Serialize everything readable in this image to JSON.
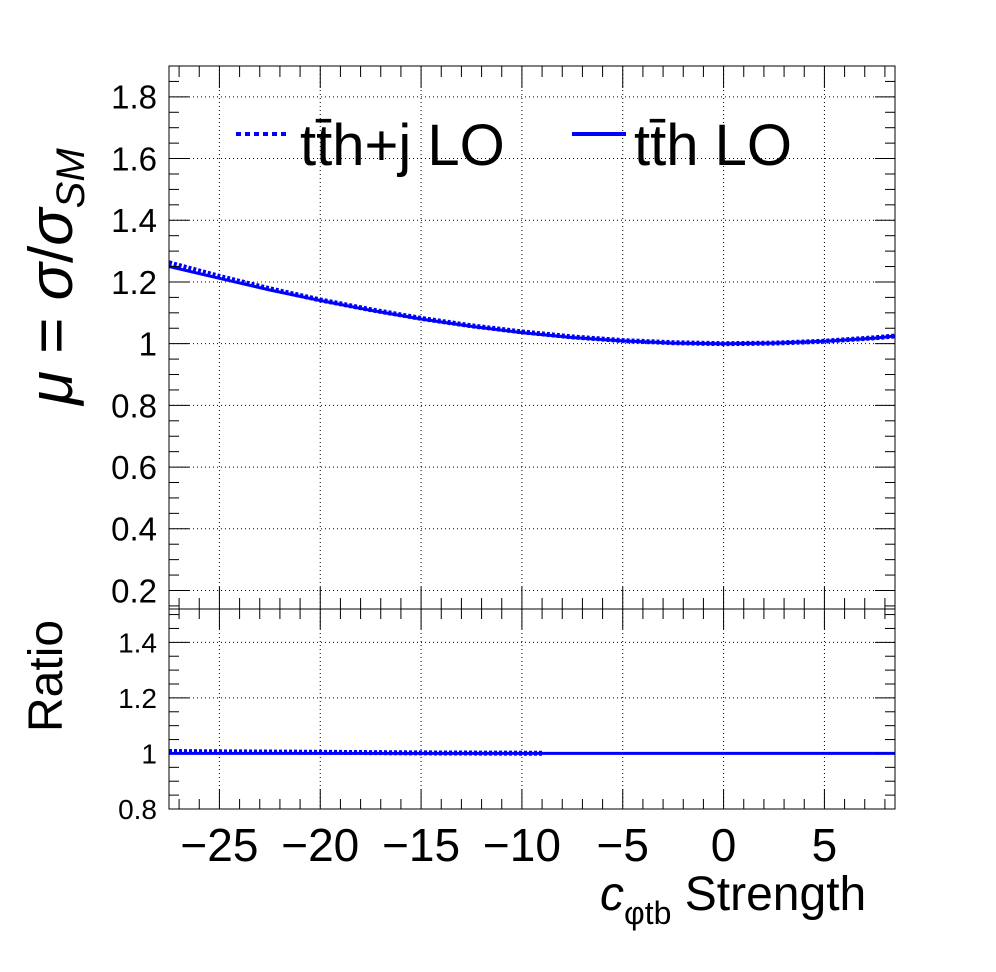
{
  "chart_data": [
    {
      "type": "line",
      "panel": "main",
      "ylabel": {
        "mu": "μ",
        "equals": " = ",
        "sigma": "σ",
        "slash": "/",
        "sigma2": "σ",
        "sub": "SM"
      },
      "xlim": [
        -27.5,
        8.5
      ],
      "ylim": [
        0.14,
        1.9
      ],
      "yticks": [
        {
          "v": 0.2,
          "label": "0.2"
        },
        {
          "v": 0.4,
          "label": "0.4"
        },
        {
          "v": 0.6,
          "label": "0.6"
        },
        {
          "v": 0.8,
          "label": "0.8"
        },
        {
          "v": 1.0,
          "label": "1"
        },
        {
          "v": 1.2,
          "label": "1.2"
        },
        {
          "v": 1.4,
          "label": "1.4"
        },
        {
          "v": 1.6,
          "label": "1.6"
        },
        {
          "v": 1.8,
          "label": "1.8"
        }
      ],
      "grid": true,
      "legend_position": "top",
      "legend": [
        {
          "label": "tt̄h+j LO",
          "style": "dotted",
          "color": "#0000ff"
        },
        {
          "label": "tt̄h LO",
          "style": "solid",
          "color": "#0000ff"
        }
      ],
      "series": [
        {
          "name": "tt̄h+j LO",
          "style": "dotted",
          "color": "#0000ff",
          "x": [
            -27.5,
            -25,
            -22.5,
            -20,
            -17.5,
            -15,
            -12.5,
            -10,
            -7.5,
            -5,
            -2.5,
            0,
            2.5,
            5,
            7.5,
            8.5
          ],
          "y": [
            1.262,
            1.218,
            1.178,
            1.142,
            1.11,
            1.082,
            1.058,
            1.038,
            1.022,
            1.01,
            1.003,
            1.0,
            1.002,
            1.008,
            1.019,
            1.025
          ]
        },
        {
          "name": "tt̄h LO",
          "style": "solid",
          "color": "#0000ff",
          "x": [
            -27.5,
            -25,
            -22.5,
            -20,
            -17.5,
            -15,
            -12.5,
            -10,
            -7.5,
            -5,
            -2.5,
            0,
            2.5,
            5,
            7.5,
            8.5
          ],
          "y": [
            1.25,
            1.212,
            1.174,
            1.14,
            1.108,
            1.08,
            1.056,
            1.036,
            1.02,
            1.009,
            1.002,
            1.0,
            1.002,
            1.008,
            1.018,
            1.025
          ]
        }
      ]
    },
    {
      "type": "line",
      "panel": "ratio",
      "ylabel": "Ratio",
      "xlabel": {
        "c": "c",
        "sub": "φtb",
        "rest": " Strength"
      },
      "xlim": [
        -27.5,
        8.5
      ],
      "ylim": [
        0.8,
        1.52
      ],
      "xticks": [
        {
          "v": -25,
          "label": "−25"
        },
        {
          "v": -20,
          "label": "−20"
        },
        {
          "v": -15,
          "label": "−15"
        },
        {
          "v": -10,
          "label": "−10"
        },
        {
          "v": -5,
          "label": "−5"
        },
        {
          "v": 0,
          "label": "0"
        },
        {
          "v": 5,
          "label": "5"
        }
      ],
      "yticks": [
        {
          "v": 0.8,
          "label": "0.8"
        },
        {
          "v": 1.0,
          "label": "1"
        },
        {
          "v": 1.2,
          "label": "1.2"
        },
        {
          "v": 1.4,
          "label": "1.4"
        }
      ],
      "grid": true,
      "series": [
        {
          "name": "tt̄h+j LO",
          "style": "dotted",
          "color": "#0000ff",
          "x": [
            -27.5,
            -25,
            -20,
            -15,
            -10,
            -9
          ],
          "y": [
            1.007,
            1.006,
            1.004,
            1.002,
            1.001,
            1.001
          ]
        },
        {
          "name": "tt̄h LO",
          "style": "solid",
          "color": "#0000ff",
          "x": [
            -27.5,
            8.5
          ],
          "y": [
            1.0,
            1.0
          ]
        }
      ]
    }
  ]
}
